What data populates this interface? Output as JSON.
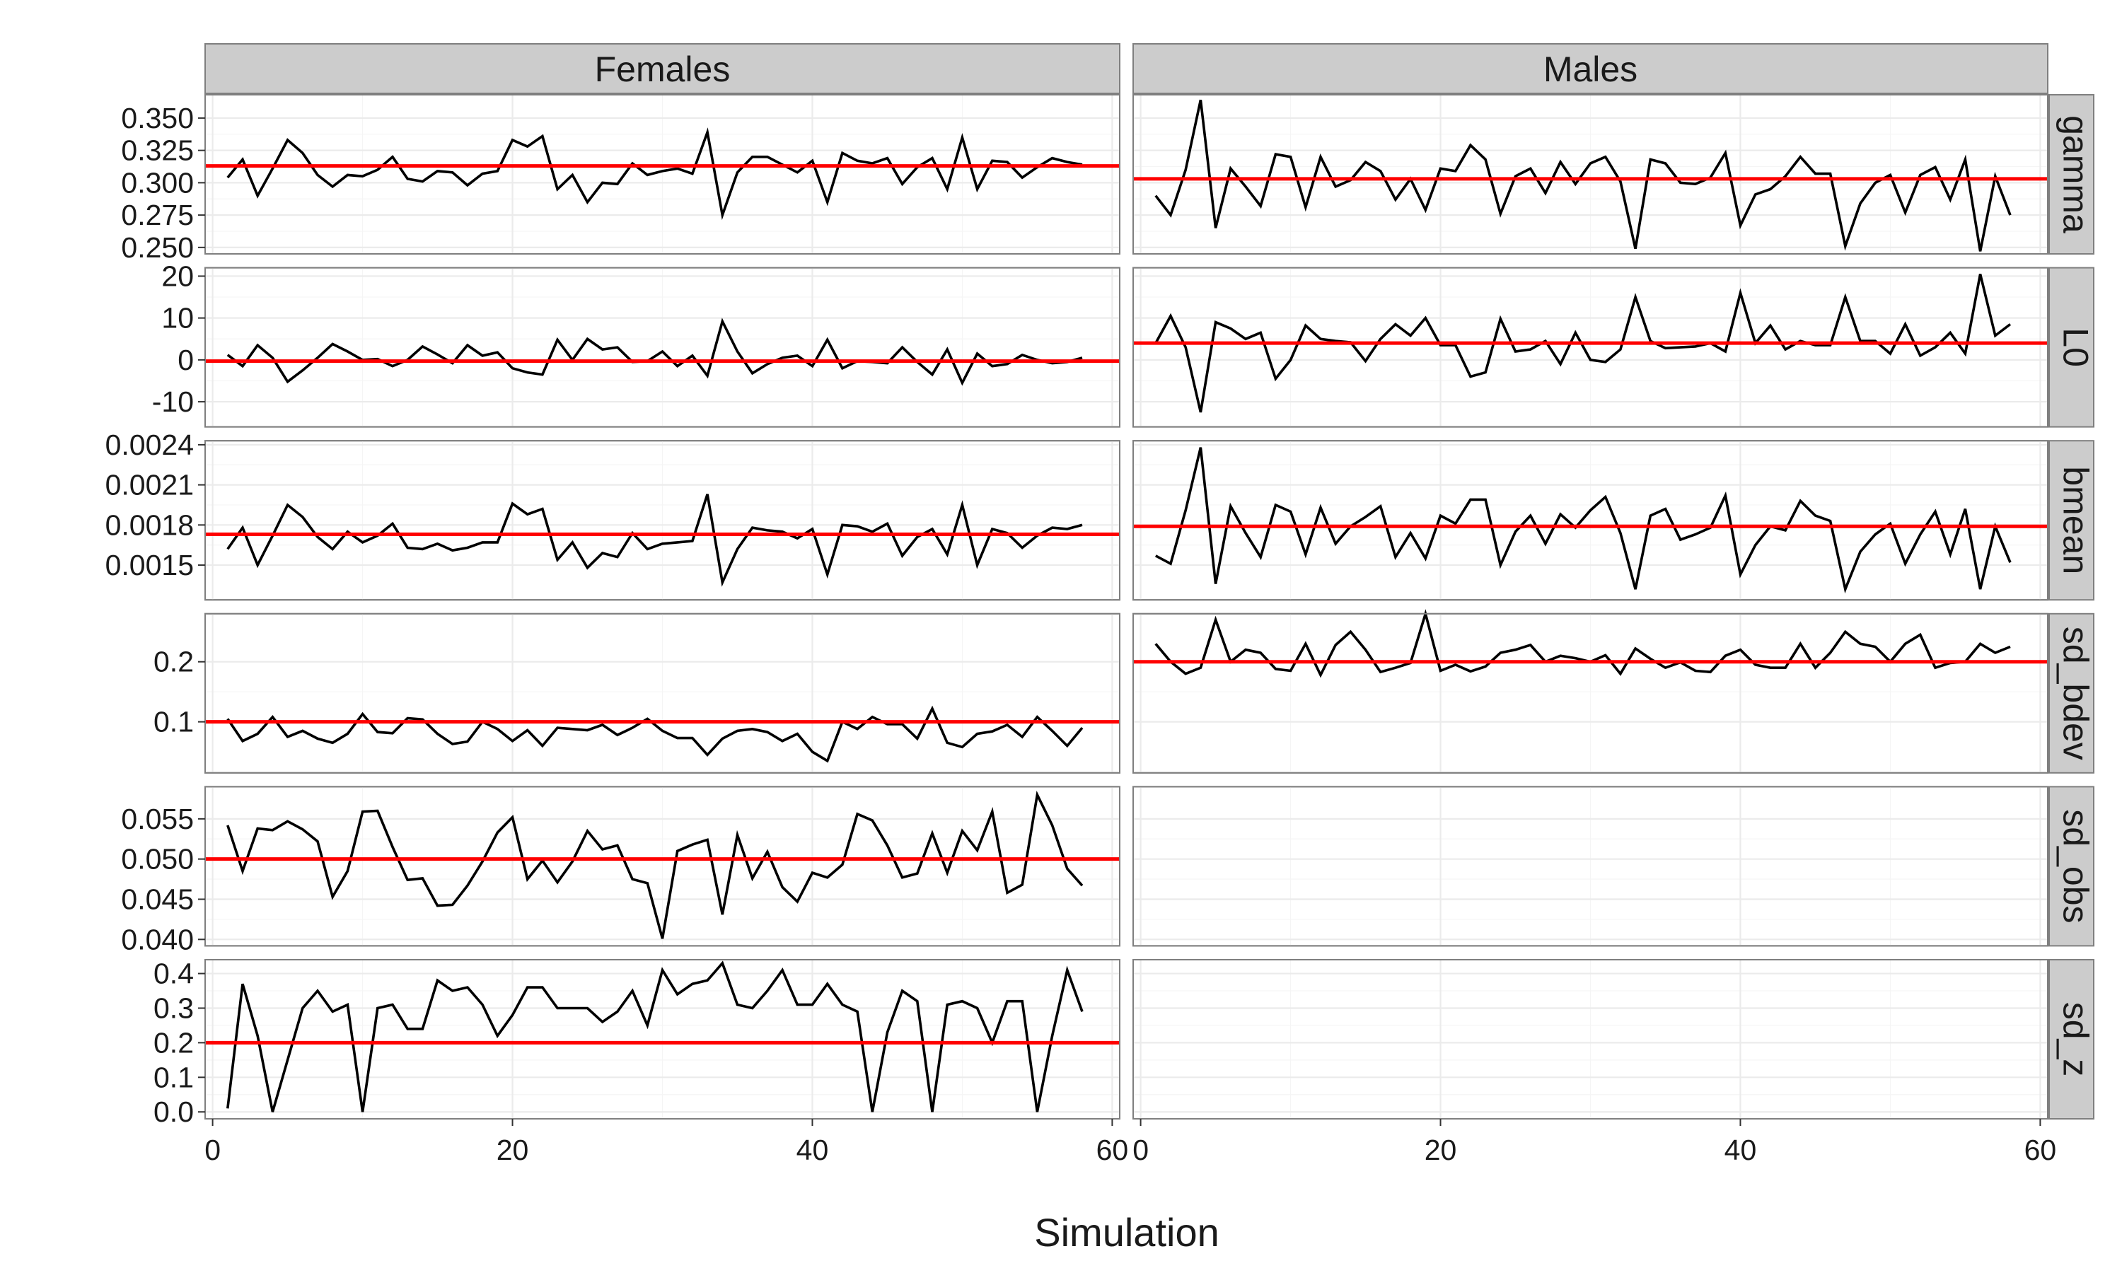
{
  "chart_data": {
    "type": "line",
    "xlabel": "Simulation",
    "facet_columns": [
      "Females",
      "Males"
    ],
    "facet_rows": [
      "gamma",
      "L0",
      "bmean",
      "sd_bdev",
      "sd_obs",
      "sd_z"
    ],
    "x_ticks": [
      "0",
      "20",
      "40",
      "60"
    ],
    "xlim": [
      -0.5,
      60.5
    ],
    "x": [
      1,
      2,
      3,
      4,
      5,
      6,
      7,
      8,
      9,
      10,
      11,
      12,
      13,
      14,
      15,
      16,
      17,
      18,
      19,
      20,
      21,
      22,
      23,
      24,
      25,
      26,
      27,
      28,
      29,
      30,
      31,
      32,
      33,
      34,
      35,
      36,
      37,
      38,
      39,
      40,
      41,
      42,
      43,
      44,
      45,
      46,
      47,
      48,
      49,
      50,
      51,
      52,
      53,
      54,
      55,
      56,
      57,
      58
    ],
    "grid": true,
    "colors": {
      "series": "#000000",
      "reference": "#ff0000",
      "strip": "#cccccc",
      "grid": "#ebebeb"
    },
    "rows": [
      {
        "name": "gamma",
        "ylim": [
          0.245,
          0.368
        ],
        "y_ticks": [
          "0.250",
          "0.275",
          "0.300",
          "0.325",
          "0.350"
        ],
        "panels": [
          {
            "facet": "Females",
            "reference": 0.313,
            "values": [
              0.304,
              0.318,
              0.29,
              0.311,
              0.333,
              0.323,
              0.306,
              0.297,
              0.306,
              0.305,
              0.31,
              0.32,
              0.303,
              0.301,
              0.309,
              0.308,
              0.298,
              0.307,
              0.309,
              0.333,
              0.328,
              0.336,
              0.295,
              0.306,
              0.285,
              0.3,
              0.299,
              0.315,
              0.306,
              0.309,
              0.311,
              0.307,
              0.339,
              0.275,
              0.308,
              0.32,
              0.32,
              0.314,
              0.308,
              0.317,
              0.285,
              0.323,
              0.317,
              0.315,
              0.319,
              0.299,
              0.312,
              0.319,
              0.295,
              0.335,
              0.295,
              0.317,
              0.316,
              0.304,
              0.312,
              0.319,
              0.316,
              0.314
            ]
          },
          {
            "facet": "Males",
            "reference": 0.303,
            "values": [
              0.29,
              0.275,
              0.31,
              0.364,
              0.265,
              0.311,
              0.297,
              0.282,
              0.322,
              0.32,
              0.281,
              0.32,
              0.297,
              0.302,
              0.316,
              0.309,
              0.287,
              0.303,
              0.279,
              0.311,
              0.309,
              0.329,
              0.318,
              0.276,
              0.305,
              0.311,
              0.292,
              0.316,
              0.299,
              0.315,
              0.32,
              0.301,
              0.249,
              0.318,
              0.315,
              0.3,
              0.299,
              0.304,
              0.323,
              0.267,
              0.291,
              0.295,
              0.305,
              0.32,
              0.307,
              0.307,
              0.251,
              0.284,
              0.3,
              0.306,
              0.277,
              0.306,
              0.312,
              0.287,
              0.318,
              0.247,
              0.305,
              0.275
            ]
          }
        ]
      },
      {
        "name": "L0",
        "ylim": [
          -16,
          22
        ],
        "y_ticks": [
          "-10",
          "0",
          "10",
          "20"
        ],
        "panels": [
          {
            "facet": "Females",
            "reference": -0.3,
            "values": [
              1.2,
              -1.5,
              3.5,
              0.5,
              -5.2,
              -2.5,
              0.5,
              3.8,
              2.0,
              0.0,
              0.2,
              -1.5,
              0.0,
              3.2,
              1.3,
              -0.8,
              3.5,
              1.0,
              1.8,
              -2.0,
              -3.0,
              -3.5,
              4.8,
              0.0,
              5.0,
              2.5,
              3.0,
              -0.5,
              -0.3,
              2.0,
              -1.5,
              1.0,
              -3.8,
              9.2,
              2.0,
              -3.2,
              -1.0,
              0.5,
              1.0,
              -1.5,
              4.8,
              -2.0,
              -0.3,
              -0.5,
              -0.8,
              3.0,
              -0.5,
              -3.5,
              2.5,
              -5.5,
              1.5,
              -1.5,
              -1.0,
              1.2,
              0.0,
              -0.8,
              -0.5,
              0.5
            ]
          },
          {
            "facet": "Males",
            "reference": 4.0,
            "values": [
              4.0,
              10.5,
              3.0,
              -12.5,
              9.0,
              7.5,
              5.0,
              6.5,
              -4.5,
              0.0,
              8.2,
              5.0,
              4.5,
              4.2,
              -0.3,
              5.0,
              8.5,
              5.8,
              10.0,
              3.5,
              3.5,
              -4.0,
              -3.0,
              9.8,
              2.0,
              2.5,
              4.5,
              -1.0,
              6.5,
              0.0,
              -0.5,
              2.5,
              15.0,
              4.5,
              2.8,
              3.0,
              3.2,
              4.0,
              2.0,
              16.0,
              4.0,
              8.2,
              2.5,
              4.5,
              3.5,
              3.5,
              15.0,
              4.5,
              4.5,
              1.5,
              8.5,
              1.0,
              3.0,
              6.5,
              1.5,
              20.5,
              5.8,
              8.5
            ]
          }
        ]
      },
      {
        "name": "bmean",
        "ylim": [
          0.00124,
          0.00243
        ],
        "y_ticks": [
          "0.0015",
          "0.0018",
          "0.0021",
          "0.0024"
        ],
        "panels": [
          {
            "facet": "Females",
            "reference": 0.00173,
            "values": [
              0.00162,
              0.00178,
              0.0015,
              0.00172,
              0.00195,
              0.00186,
              0.00171,
              0.00162,
              0.00175,
              0.00167,
              0.00172,
              0.00181,
              0.00163,
              0.00162,
              0.00166,
              0.00161,
              0.00163,
              0.00167,
              0.00167,
              0.00196,
              0.00188,
              0.00192,
              0.00154,
              0.00167,
              0.00148,
              0.00159,
              0.00156,
              0.00174,
              0.00162,
              0.00166,
              0.00167,
              0.00168,
              0.00203,
              0.00137,
              0.00162,
              0.00178,
              0.00176,
              0.00175,
              0.0017,
              0.00177,
              0.00143,
              0.0018,
              0.00179,
              0.00175,
              0.00181,
              0.00157,
              0.00171,
              0.00177,
              0.00158,
              0.00195,
              0.0015,
              0.00177,
              0.00174,
              0.00163,
              0.00172,
              0.00178,
              0.00177,
              0.0018
            ]
          },
          {
            "facet": "Males",
            "reference": 0.00179,
            "values": [
              0.00157,
              0.00151,
              0.00191,
              0.00238,
              0.00136,
              0.00194,
              0.00174,
              0.00156,
              0.00195,
              0.0019,
              0.00158,
              0.00193,
              0.00166,
              0.00179,
              0.00186,
              0.00194,
              0.00156,
              0.00174,
              0.00155,
              0.00187,
              0.00181,
              0.00199,
              0.00199,
              0.0015,
              0.00175,
              0.00187,
              0.00166,
              0.00188,
              0.00178,
              0.00191,
              0.00201,
              0.00174,
              0.00132,
              0.00187,
              0.00192,
              0.00169,
              0.00173,
              0.00178,
              0.00202,
              0.00143,
              0.00165,
              0.00179,
              0.00176,
              0.00198,
              0.00187,
              0.00183,
              0.00132,
              0.0016,
              0.00173,
              0.00181,
              0.00151,
              0.00173,
              0.0019,
              0.00158,
              0.00192,
              0.00132,
              0.00179,
              0.00152
            ]
          }
        ]
      },
      {
        "name": "sd_bdev",
        "ylim": [
          0.015,
          0.28
        ],
        "y_ticks": [
          "0.1",
          "0.2"
        ],
        "panels": [
          {
            "facet": "Females",
            "reference": 0.1,
            "values": [
              0.105,
              0.068,
              0.08,
              0.108,
              0.075,
              0.085,
              0.072,
              0.065,
              0.08,
              0.113,
              0.083,
              0.081,
              0.106,
              0.104,
              0.08,
              0.063,
              0.067,
              0.1,
              0.088,
              0.068,
              0.086,
              0.06,
              0.09,
              0.088,
              0.086,
              0.095,
              0.078,
              0.09,
              0.105,
              0.085,
              0.073,
              0.073,
              0.045,
              0.072,
              0.085,
              0.088,
              0.083,
              0.068,
              0.08,
              0.05,
              0.035,
              0.1,
              0.088,
              0.108,
              0.096,
              0.096,
              0.072,
              0.122,
              0.065,
              0.058,
              0.08,
              0.084,
              0.095,
              0.075,
              0.108,
              0.085,
              0.06,
              0.09
            ]
          },
          {
            "facet": "Males",
            "reference": 0.2,
            "values": [
              0.23,
              0.2,
              0.18,
              0.19,
              0.27,
              0.2,
              0.22,
              0.215,
              0.188,
              0.185,
              0.23,
              0.178,
              0.228,
              0.25,
              0.22,
              0.183,
              0.19,
              0.198,
              0.28,
              0.185,
              0.195,
              0.184,
              0.192,
              0.215,
              0.22,
              0.228,
              0.2,
              0.21,
              0.206,
              0.2,
              0.211,
              0.18,
              0.222,
              0.205,
              0.19,
              0.199,
              0.185,
              0.183,
              0.21,
              0.22,
              0.195,
              0.19,
              0.19,
              0.23,
              0.19,
              0.215,
              0.25,
              0.23,
              0.225,
              0.2,
              0.23,
              0.245,
              0.19,
              0.198,
              0.2,
              0.23,
              0.215,
              0.225
            ]
          }
        ]
      },
      {
        "name": "sd_obs",
        "ylim": [
          0.0392,
          0.059
        ],
        "y_ticks": [
          "0.040",
          "0.045",
          "0.050",
          "0.055"
        ],
        "panels": [
          {
            "facet": "Females",
            "reference": 0.05,
            "values": [
              0.0542,
              0.0485,
              0.0538,
              0.0536,
              0.0547,
              0.0537,
              0.0522,
              0.0453,
              0.0485,
              0.0559,
              0.056,
              0.0515,
              0.0474,
              0.0476,
              0.0442,
              0.0443,
              0.0467,
              0.0497,
              0.0533,
              0.0552,
              0.0475,
              0.0498,
              0.0471,
              0.0497,
              0.0535,
              0.0512,
              0.0517,
              0.0475,
              0.047,
              0.0401,
              0.051,
              0.0518,
              0.0524,
              0.0431,
              0.053,
              0.0476,
              0.0509,
              0.0465,
              0.0447,
              0.0483,
              0.0477,
              0.0493,
              0.0556,
              0.0548,
              0.0517,
              0.0477,
              0.0482,
              0.0532,
              0.0483,
              0.0535,
              0.0511,
              0.0559,
              0.0458,
              0.0468,
              0.058,
              0.0542,
              0.0488,
              0.0467
            ]
          }
        ]
      },
      {
        "name": "sd_z",
        "ylim": [
          -0.02,
          0.44
        ],
        "y_ticks": [
          "0.0",
          "0.1",
          "0.2",
          "0.3",
          "0.4"
        ],
        "panels": [
          {
            "facet": "Females",
            "reference": 0.2,
            "values": [
              0.01,
              0.37,
              0.22,
              0.0,
              0.15,
              0.3,
              0.35,
              0.29,
              0.31,
              0.0,
              0.3,
              0.31,
              0.24,
              0.24,
              0.38,
              0.35,
              0.36,
              0.31,
              0.22,
              0.28,
              0.36,
              0.36,
              0.3,
              0.3,
              0.3,
              0.26,
              0.29,
              0.35,
              0.25,
              0.41,
              0.34,
              0.37,
              0.38,
              0.43,
              0.31,
              0.3,
              0.35,
              0.41,
              0.31,
              0.31,
              0.37,
              0.31,
              0.29,
              0.0,
              0.23,
              0.35,
              0.32,
              0.0,
              0.31,
              0.32,
              0.3,
              0.2,
              0.32,
              0.32,
              0.0,
              0.22,
              0.41,
              0.29
            ]
          }
        ]
      }
    ]
  }
}
